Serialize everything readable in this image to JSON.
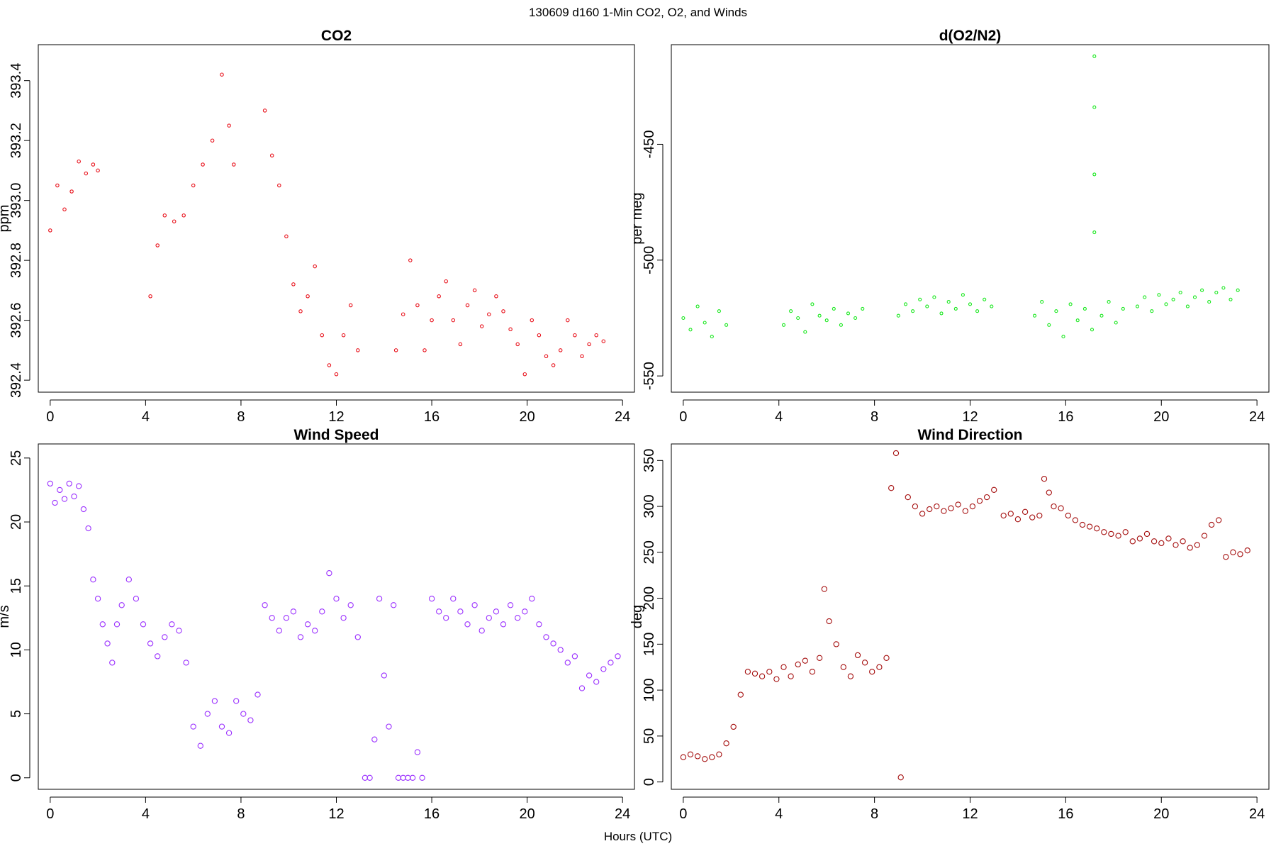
{
  "figure": {
    "title": "130609   d160   1-Min CO2, O2, and Winds",
    "xlabel": "Hours (UTC)"
  },
  "chart_data": [
    {
      "type": "scatter",
      "title": "CO2",
      "ylabel": "ppm",
      "color": "#e8101a",
      "marker_radius": 2.2,
      "xlim": [
        -0.5,
        24.5
      ],
      "ylim": [
        392.36,
        393.52
      ],
      "xticks": [
        0,
        4,
        8,
        12,
        16,
        20,
        24
      ],
      "yticks": [
        392.4,
        392.6,
        392.8,
        393.0,
        393.2,
        393.4
      ],
      "ytick_labels": [
        "392.4",
        "392.6",
        "392.8",
        "393.0",
        "393.2",
        "393.4"
      ],
      "series": [
        {
          "name": "CO2",
          "x": [
            0.0,
            0.3,
            0.6,
            0.9,
            1.2,
            1.5,
            1.8,
            2.0,
            4.2,
            4.5,
            4.8,
            5.2,
            5.6,
            6.0,
            6.4,
            6.8,
            7.2,
            7.5,
            7.7,
            9.0,
            9.3,
            9.6,
            9.9,
            10.2,
            10.5,
            10.8,
            11.1,
            11.4,
            11.7,
            12.0,
            12.3,
            12.6,
            12.9,
            14.5,
            14.8,
            15.1,
            15.4,
            15.7,
            16.0,
            16.3,
            16.6,
            16.9,
            17.2,
            17.5,
            17.8,
            18.1,
            18.4,
            18.7,
            19.0,
            19.3,
            19.6,
            19.9,
            20.2,
            20.5,
            20.8,
            21.1,
            21.4,
            21.7,
            22.0,
            22.3,
            22.6,
            22.9,
            23.2
          ],
          "y": [
            392.9,
            393.05,
            392.97,
            393.03,
            393.13,
            393.09,
            393.12,
            393.1,
            392.68,
            392.85,
            392.95,
            392.93,
            392.95,
            393.05,
            393.12,
            393.2,
            393.42,
            393.25,
            393.12,
            393.3,
            393.15,
            393.05,
            392.88,
            392.72,
            392.63,
            392.68,
            392.78,
            392.55,
            392.45,
            392.42,
            392.55,
            392.65,
            392.5,
            392.5,
            392.62,
            392.8,
            392.65,
            392.5,
            392.6,
            392.68,
            392.73,
            392.6,
            392.52,
            392.65,
            392.7,
            392.58,
            392.62,
            392.68,
            392.63,
            392.57,
            392.52,
            392.42,
            392.6,
            392.55,
            392.48,
            392.45,
            392.5,
            392.6,
            392.55,
            392.48,
            392.52,
            392.55,
            392.53
          ]
        }
      ]
    },
    {
      "type": "scatter",
      "title": "d(O2/N2)",
      "ylabel": "per meg",
      "color": "#17e81c",
      "marker_radius": 2.0,
      "xlim": [
        -0.5,
        24.5
      ],
      "ylim": [
        -557,
        -407
      ],
      "xticks": [
        0,
        4,
        8,
        12,
        16,
        20,
        24
      ],
      "yticks": [
        -550,
        -500,
        -450
      ],
      "ytick_labels": [
        "-550",
        "-500",
        "-450"
      ],
      "series": [
        {
          "name": "d(O2/N2)",
          "x": [
            0.0,
            0.3,
            0.6,
            0.9,
            1.2,
            1.5,
            1.8,
            4.2,
            4.5,
            4.8,
            5.1,
            5.4,
            5.7,
            6.0,
            6.3,
            6.6,
            6.9,
            7.2,
            7.5,
            9.0,
            9.3,
            9.6,
            9.9,
            10.2,
            10.5,
            10.8,
            11.1,
            11.4,
            11.7,
            12.0,
            12.3,
            12.6,
            12.9,
            14.7,
            15.0,
            15.3,
            15.6,
            15.9,
            16.2,
            16.5,
            16.8,
            17.1,
            17.2,
            17.2,
            17.2,
            17.2,
            17.5,
            17.8,
            18.1,
            18.4,
            19.0,
            19.3,
            19.6,
            19.9,
            20.2,
            20.5,
            20.8,
            21.1,
            21.4,
            21.7,
            22.0,
            22.3,
            22.6,
            22.9,
            23.2
          ],
          "y": [
            -525,
            -530,
            -520,
            -527,
            -533,
            -522,
            -528,
            -528,
            -522,
            -525,
            -531,
            -519,
            -524,
            -526,
            -521,
            -528,
            -523,
            -525,
            -521,
            -524,
            -519,
            -522,
            -517,
            -520,
            -516,
            -523,
            -518,
            -521,
            -515,
            -519,
            -522,
            -517,
            -520,
            -524,
            -518,
            -528,
            -522,
            -533,
            -519,
            -526,
            -521,
            -530,
            -412,
            -434,
            -463,
            -488,
            -524,
            -518,
            -527,
            -521,
            -520,
            -516,
            -522,
            -515,
            -519,
            -517,
            -514,
            -520,
            -516,
            -513,
            -518,
            -514,
            -512,
            -517,
            -513
          ]
        }
      ]
    },
    {
      "type": "scatter",
      "title": "Wind Speed",
      "ylabel": "m/s",
      "color": "#9b30ff",
      "marker_radius": 3.6,
      "xlim": [
        -0.5,
        24.5
      ],
      "ylim": [
        -0.9,
        26.1
      ],
      "xticks": [
        0,
        4,
        8,
        12,
        16,
        20,
        24
      ],
      "yticks": [
        0,
        5,
        10,
        15,
        20,
        25
      ],
      "ytick_labels": [
        "0",
        "5",
        "10",
        "15",
        "20",
        "25"
      ],
      "series": [
        {
          "name": "Wind Speed",
          "x": [
            0.0,
            0.2,
            0.4,
            0.6,
            0.8,
            1.0,
            1.2,
            1.4,
            1.6,
            1.8,
            2.0,
            2.2,
            2.4,
            2.6,
            2.8,
            3.0,
            3.3,
            3.6,
            3.9,
            4.2,
            4.5,
            4.8,
            5.1,
            5.4,
            5.7,
            6.0,
            6.3,
            6.6,
            6.9,
            7.2,
            7.5,
            7.8,
            8.1,
            8.4,
            8.7,
            9.0,
            9.3,
            9.6,
            9.9,
            10.2,
            10.5,
            10.8,
            11.1,
            11.4,
            11.7,
            12.0,
            12.3,
            12.6,
            12.9,
            13.2,
            13.4,
            13.6,
            13.8,
            14.0,
            14.2,
            14.4,
            14.6,
            14.8,
            15.0,
            15.2,
            15.4,
            15.6,
            16.0,
            16.3,
            16.6,
            16.9,
            17.2,
            17.5,
            17.8,
            18.1,
            18.4,
            18.7,
            19.0,
            19.3,
            19.6,
            19.9,
            20.2,
            20.5,
            20.8,
            21.1,
            21.4,
            21.7,
            22.0,
            22.3,
            22.6,
            22.9,
            23.2,
            23.5,
            23.8
          ],
          "y": [
            23.0,
            21.5,
            22.5,
            21.8,
            23.0,
            22.0,
            22.8,
            21.0,
            19.5,
            15.5,
            14.0,
            12.0,
            10.5,
            9.0,
            12.0,
            13.5,
            15.5,
            14.0,
            12.0,
            10.5,
            9.5,
            11.0,
            12.0,
            11.5,
            9.0,
            4.0,
            2.5,
            5.0,
            6.0,
            4.0,
            3.5,
            6.0,
            5.0,
            4.5,
            6.5,
            13.5,
            12.5,
            11.5,
            12.5,
            13.0,
            11.0,
            12.0,
            11.5,
            13.0,
            16.0,
            14.0,
            12.5,
            13.5,
            11.0,
            0.0,
            0.0,
            3.0,
            14.0,
            8.0,
            4.0,
            13.5,
            0.0,
            0.0,
            0.0,
            0.0,
            2.0,
            0.0,
            14.0,
            13.0,
            12.5,
            14.0,
            13.0,
            12.0,
            13.5,
            11.5,
            12.5,
            13.0,
            12.0,
            13.5,
            12.5,
            13.0,
            14.0,
            12.0,
            11.0,
            10.5,
            10.0,
            9.0,
            9.5,
            7.0,
            8.0,
            7.5,
            8.5,
            9.0,
            9.5
          ]
        }
      ]
    },
    {
      "type": "scatter",
      "title": "Wind Direction",
      "ylabel": "deg",
      "color": "#a50f0f",
      "marker_radius": 3.6,
      "xlim": [
        -0.5,
        24.5
      ],
      "ylim": [
        -8,
        368
      ],
      "xticks": [
        0,
        4,
        8,
        12,
        16,
        20,
        24
      ],
      "yticks": [
        0,
        50,
        100,
        150,
        200,
        250,
        300,
        350
      ],
      "ytick_labels": [
        "0",
        "50",
        "100",
        "150",
        "200",
        "250",
        "300",
        "350"
      ],
      "series": [
        {
          "name": "Wind Direction",
          "x": [
            0.0,
            0.3,
            0.6,
            0.9,
            1.2,
            1.5,
            1.8,
            2.1,
            2.4,
            2.7,
            3.0,
            3.3,
            3.6,
            3.9,
            4.2,
            4.5,
            4.8,
            5.1,
            5.4,
            5.7,
            5.9,
            6.1,
            6.4,
            6.7,
            7.0,
            7.3,
            7.6,
            7.9,
            8.2,
            8.5,
            8.7,
            8.9,
            9.1,
            9.4,
            9.7,
            10.0,
            10.3,
            10.6,
            10.9,
            11.2,
            11.5,
            11.8,
            12.1,
            12.4,
            12.7,
            13.0,
            13.4,
            13.7,
            14.0,
            14.3,
            14.6,
            14.9,
            15.1,
            15.3,
            15.5,
            15.8,
            16.1,
            16.4,
            16.7,
            17.0,
            17.3,
            17.6,
            17.9,
            18.2,
            18.5,
            18.8,
            19.1,
            19.4,
            19.7,
            20.0,
            20.3,
            20.6,
            20.9,
            21.2,
            21.5,
            21.8,
            22.1,
            22.4,
            22.7,
            23.0,
            23.3,
            23.6
          ],
          "y": [
            27,
            30,
            28,
            25,
            27,
            30,
            42,
            60,
            95,
            120,
            118,
            115,
            120,
            112,
            125,
            115,
            128,
            132,
            120,
            135,
            210,
            175,
            150,
            125,
            115,
            138,
            130,
            120,
            125,
            135,
            320,
            358,
            5,
            310,
            300,
            292,
            297,
            300,
            295,
            298,
            302,
            295,
            300,
            306,
            310,
            318,
            290,
            292,
            286,
            294,
            288,
            290,
            330,
            315,
            300,
            298,
            290,
            285,
            280,
            278,
            276,
            272,
            270,
            268,
            272,
            262,
            265,
            270,
            262,
            260,
            265,
            258,
            262,
            255,
            258,
            268,
            280,
            285,
            245,
            250,
            248,
            252
          ]
        }
      ]
    }
  ]
}
